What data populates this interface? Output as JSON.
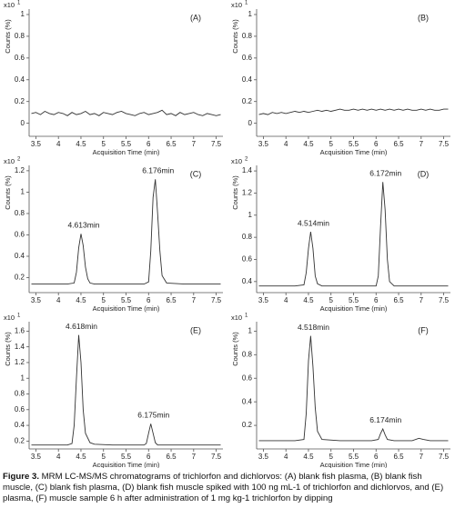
{
  "chart_data": [
    {
      "type": "line",
      "label": "(A)",
      "y_multiplier": "x10",
      "y_exponent": "1",
      "ylabel": "Counts (%)",
      "xlabel": "Acquisition Time (min)",
      "xlim": [
        3.35,
        7.65
      ],
      "xticks": [
        3.5,
        4,
        4.5,
        5,
        5.5,
        6,
        6.5,
        7,
        7.5
      ],
      "ylim": [
        -0.12,
        1.05
      ],
      "yticks": [
        0,
        0.2,
        0.4,
        0.6,
        0.8,
        1
      ],
      "color": "#333333",
      "x": [
        3.4,
        3.5,
        3.6,
        3.7,
        3.8,
        3.9,
        4.0,
        4.1,
        4.2,
        4.3,
        4.4,
        4.5,
        4.6,
        4.7,
        4.8,
        4.9,
        5.0,
        5.1,
        5.2,
        5.3,
        5.4,
        5.5,
        5.6,
        5.7,
        5.8,
        5.9,
        6.0,
        6.1,
        6.2,
        6.3,
        6.4,
        6.5,
        6.6,
        6.7,
        6.8,
        6.9,
        7.0,
        7.1,
        7.2,
        7.3,
        7.4,
        7.5,
        7.6
      ],
      "values": [
        0.09,
        0.1,
        0.08,
        0.11,
        0.09,
        0.08,
        0.1,
        0.09,
        0.07,
        0.1,
        0.08,
        0.09,
        0.11,
        0.08,
        0.09,
        0.07,
        0.1,
        0.09,
        0.08,
        0.1,
        0.11,
        0.09,
        0.08,
        0.07,
        0.09,
        0.1,
        0.08,
        0.09,
        0.1,
        0.12,
        0.08,
        0.09,
        0.07,
        0.1,
        0.08,
        0.09,
        0.1,
        0.08,
        0.07,
        0.09,
        0.08,
        0.07,
        0.08
      ],
      "annotations": []
    },
    {
      "type": "line",
      "label": "(B)",
      "y_multiplier": "x10",
      "y_exponent": "1",
      "ylabel": "Counts (%)",
      "xlabel": "Acquisition Time (min)",
      "xlim": [
        3.35,
        7.65
      ],
      "xticks": [
        3.5,
        4,
        4.5,
        5,
        5.5,
        6,
        6.5,
        7,
        7.5
      ],
      "ylim": [
        -0.12,
        1.05
      ],
      "yticks": [
        0,
        0.2,
        0.4,
        0.6,
        0.8,
        1
      ],
      "color": "#333333",
      "x": [
        3.4,
        3.5,
        3.6,
        3.7,
        3.8,
        3.9,
        4.0,
        4.1,
        4.2,
        4.3,
        4.4,
        4.5,
        4.6,
        4.7,
        4.8,
        4.9,
        5.0,
        5.1,
        5.2,
        5.3,
        5.4,
        5.5,
        5.6,
        5.7,
        5.8,
        5.9,
        6.0,
        6.1,
        6.2,
        6.3,
        6.4,
        6.5,
        6.6,
        6.7,
        6.8,
        6.9,
        7.0,
        7.1,
        7.2,
        7.3,
        7.4,
        7.5,
        7.6
      ],
      "values": [
        0.08,
        0.09,
        0.08,
        0.1,
        0.09,
        0.1,
        0.09,
        0.1,
        0.11,
        0.1,
        0.11,
        0.1,
        0.11,
        0.12,
        0.11,
        0.12,
        0.11,
        0.12,
        0.13,
        0.12,
        0.12,
        0.13,
        0.12,
        0.13,
        0.12,
        0.13,
        0.12,
        0.13,
        0.12,
        0.13,
        0.12,
        0.13,
        0.12,
        0.13,
        0.12,
        0.12,
        0.13,
        0.12,
        0.13,
        0.12,
        0.12,
        0.13,
        0.13
      ],
      "annotations": []
    },
    {
      "type": "line",
      "label": "(C)",
      "y_multiplier": "x10",
      "y_exponent": "2",
      "ylabel": "Counts (%)",
      "xlabel": "Acquisition Time (min)",
      "xlim": [
        3.35,
        7.65
      ],
      "xticks": [
        3.5,
        4,
        4.5,
        5,
        5.5,
        6,
        6.5,
        7,
        7.5
      ],
      "ylim": [
        0.06,
        1.25
      ],
      "yticks": [
        0.2,
        0.4,
        0.6,
        0.8,
        1,
        1.2
      ],
      "color": "#333333",
      "x": [
        3.4,
        3.8,
        4.2,
        4.35,
        4.4,
        4.45,
        4.5,
        4.55,
        4.6,
        4.65,
        4.7,
        4.8,
        5.2,
        5.6,
        5.9,
        6.0,
        6.05,
        6.1,
        6.15,
        6.2,
        6.25,
        6.3,
        6.4,
        6.8,
        7.2,
        7.6
      ],
      "values": [
        0.14,
        0.14,
        0.14,
        0.15,
        0.25,
        0.48,
        0.61,
        0.5,
        0.3,
        0.19,
        0.15,
        0.14,
        0.14,
        0.14,
        0.14,
        0.16,
        0.45,
        0.95,
        1.12,
        0.8,
        0.45,
        0.22,
        0.15,
        0.14,
        0.14,
        0.14
      ],
      "annotations": [
        {
          "text": "4.613min",
          "x": 4.5
        },
        {
          "text": "6.176min",
          "x": 6.15
        }
      ]
    },
    {
      "type": "line",
      "label": "(D)",
      "y_multiplier": "x10",
      "y_exponent": "2",
      "ylabel": "Counts (%)",
      "xlabel": "Acquisition Time (min)",
      "xlim": [
        3.35,
        7.65
      ],
      "xticks": [
        3.5,
        4,
        4.5,
        5,
        5.5,
        6,
        6.5,
        7,
        7.5
      ],
      "ylim": [
        0.3,
        1.45
      ],
      "yticks": [
        0.4,
        0.6,
        0.8,
        1,
        1.2,
        1.4
      ],
      "color": "#333333",
      "x": [
        3.4,
        3.8,
        4.2,
        4.4,
        4.45,
        4.5,
        4.55,
        4.6,
        4.65,
        4.7,
        4.8,
        5.2,
        5.6,
        5.9,
        6.0,
        6.05,
        6.1,
        6.15,
        6.2,
        6.25,
        6.3,
        6.4,
        6.8,
        7.2,
        7.6
      ],
      "values": [
        0.36,
        0.36,
        0.36,
        0.37,
        0.48,
        0.7,
        0.85,
        0.7,
        0.45,
        0.38,
        0.36,
        0.36,
        0.36,
        0.36,
        0.36,
        0.45,
        0.9,
        1.3,
        1.05,
        0.6,
        0.4,
        0.36,
        0.36,
        0.36,
        0.36
      ],
      "annotations": [
        {
          "text": "4.514min",
          "x": 4.55
        },
        {
          "text": "6.172min",
          "x": 6.15
        }
      ]
    },
    {
      "type": "line",
      "label": "(E)",
      "y_multiplier": "x10",
      "y_exponent": "1",
      "ylabel": "Counts (%)",
      "xlabel": "Acquisition Time (min)",
      "xlim": [
        3.35,
        7.65
      ],
      "xticks": [
        3.5,
        4,
        4.5,
        5,
        5.5,
        6,
        6.5,
        7,
        7.5
      ],
      "ylim": [
        0.1,
        1.72
      ],
      "yticks": [
        0.2,
        0.4,
        0.6,
        0.8,
        1,
        1.2,
        1.4,
        1.6
      ],
      "color": "#333333",
      "x": [
        3.4,
        3.8,
        4.2,
        4.3,
        4.35,
        4.4,
        4.45,
        4.5,
        4.55,
        4.6,
        4.7,
        4.8,
        5.2,
        5.6,
        5.9,
        5.95,
        6.0,
        6.05,
        6.1,
        6.15,
        6.2,
        6.4,
        6.8,
        7.2,
        7.6
      ],
      "values": [
        0.15,
        0.15,
        0.15,
        0.17,
        0.4,
        1.0,
        1.55,
        1.2,
        0.6,
        0.3,
        0.18,
        0.16,
        0.15,
        0.15,
        0.15,
        0.17,
        0.3,
        0.42,
        0.3,
        0.18,
        0.15,
        0.15,
        0.15,
        0.15,
        0.15
      ],
      "annotations": [
        {
          "text": "4.618min",
          "x": 4.45
        },
        {
          "text": "6.175min",
          "x": 6.05
        }
      ]
    },
    {
      "type": "line",
      "label": "(F)",
      "y_multiplier": "x10",
      "y_exponent": "1",
      "ylabel": "Counts (%)",
      "xlabel": "Acquisition Time (min)",
      "xlim": [
        3.35,
        7.65
      ],
      "xticks": [
        3.5,
        4,
        4.5,
        5,
        5.5,
        6,
        6.5,
        7,
        7.5
      ],
      "ylim": [
        0.0,
        1.08
      ],
      "yticks": [
        0.2,
        0.4,
        0.6,
        0.8,
        1
      ],
      "color": "#333333",
      "x": [
        3.4,
        3.8,
        4.2,
        4.4,
        4.45,
        4.5,
        4.55,
        4.6,
        4.65,
        4.7,
        4.8,
        5.2,
        5.6,
        5.9,
        6.05,
        6.1,
        6.15,
        6.2,
        6.25,
        6.4,
        6.8,
        6.95,
        7.05,
        7.2,
        7.6
      ],
      "values": [
        0.07,
        0.07,
        0.07,
        0.08,
        0.3,
        0.75,
        0.96,
        0.7,
        0.35,
        0.15,
        0.08,
        0.07,
        0.07,
        0.07,
        0.08,
        0.13,
        0.17,
        0.12,
        0.08,
        0.07,
        0.07,
        0.09,
        0.08,
        0.07,
        0.07
      ],
      "annotations": [
        {
          "text": "4.518min",
          "x": 4.55
        },
        {
          "text": "6.174min",
          "x": 6.15
        }
      ]
    }
  ],
  "caption": {
    "label": "Figure 3.",
    "text": "MRM LC-MS/MS chromatograms of trichlorfon and dichlorvos: (A) blank fish plasma, (B) blank fish muscle, (C) blank fish plasma, (D) blank fish muscle spiked with 100 ng mL-1 of trichlorfon and dichlorvos, and (E) plasma, (F) muscle sample 6 h after administration of 1 mg kg-1 trichlorfon by dipping"
  }
}
